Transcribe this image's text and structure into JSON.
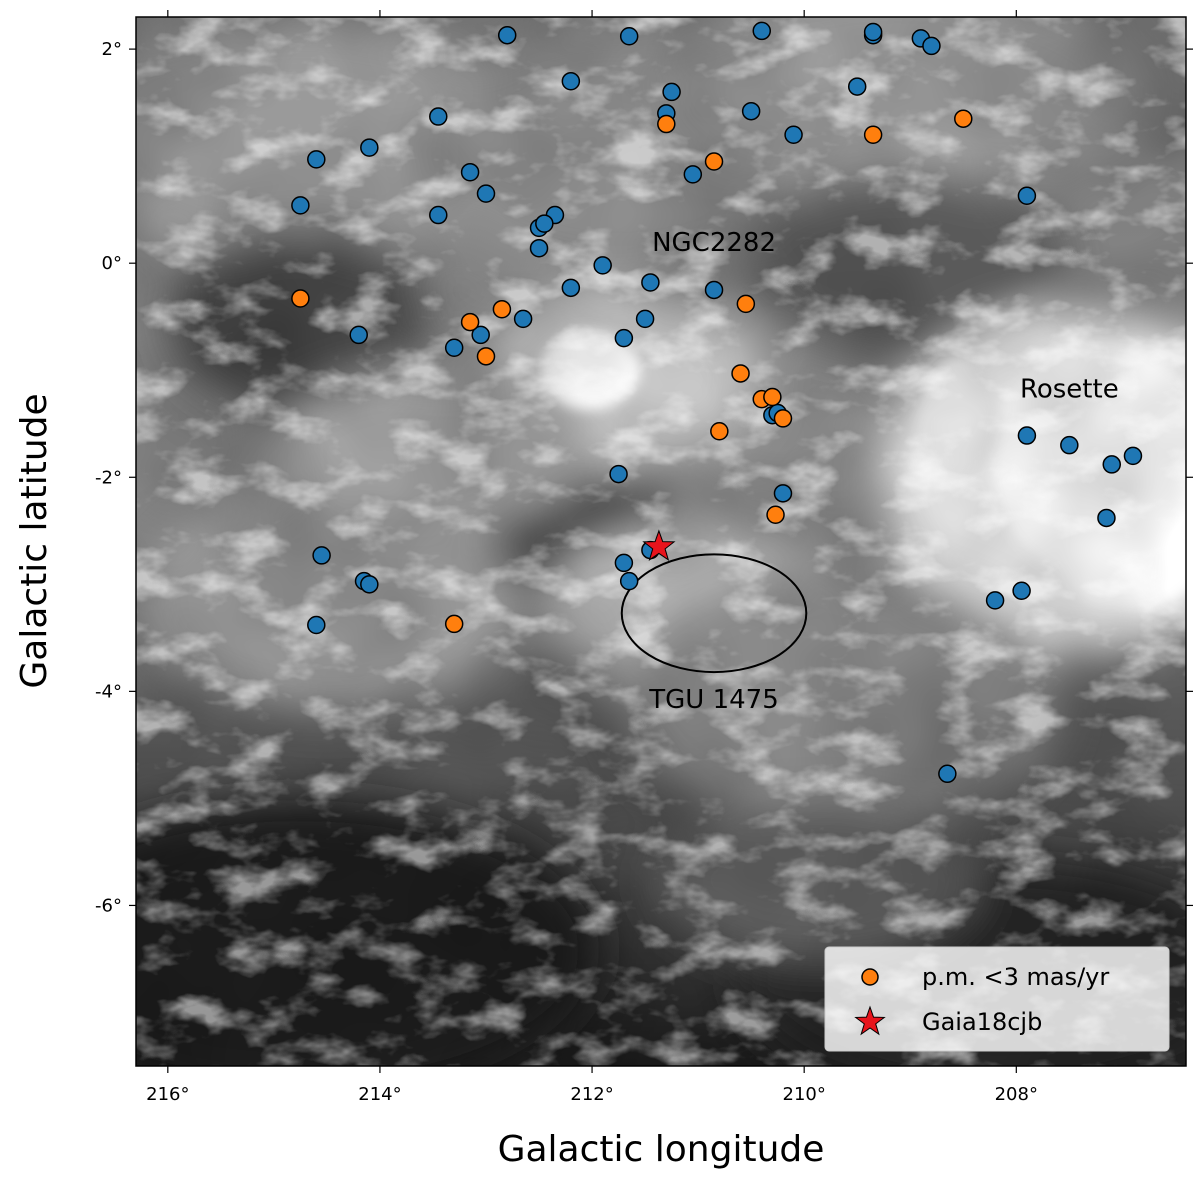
{
  "chart_data": {
    "type": "scatter",
    "background": "grayscale emission image",
    "xlabel": "Galactic longitude",
    "ylabel": "Galactic latitude",
    "xlim": [
      216.3,
      206.4
    ],
    "ylim": [
      -7.5,
      2.3
    ],
    "x_inverted": true,
    "x_ticks": [
      216,
      214,
      212,
      210,
      208
    ],
    "x_tick_labels": [
      "216°",
      "214°",
      "212°",
      "210°",
      "208°"
    ],
    "y_ticks": [
      2,
      0,
      -2,
      -4,
      -6
    ],
    "y_tick_labels": [
      "2°",
      "0°",
      "-2°",
      "-4°",
      "-6°"
    ],
    "grid": false,
    "legend_position": "lower-right",
    "colors": {
      "blue": "#1f77b4",
      "orange": "#ff7f0e",
      "star": "#e8141c"
    },
    "series": [
      {
        "name": "",
        "color": "#1f77b4",
        "x": [
          212.8,
          211.65,
          210.4,
          209.35,
          209.35,
          208.9,
          208.8,
          212.2,
          211.25,
          209.5,
          211.3,
          210.5,
          213.45,
          210.1,
          214.6,
          214.1,
          213.15,
          211.05,
          213.0,
          207.9,
          214.75,
          213.45,
          212.35,
          212.5,
          212.45,
          212.5,
          211.9,
          212.2,
          211.45,
          210.85,
          212.65,
          211.5,
          214.2,
          213.05,
          213.3,
          211.7,
          210.3,
          210.25,
          207.9,
          207.5,
          207.1,
          206.9,
          211.75,
          210.2,
          207.15,
          211.7,
          211.45,
          211.65,
          214.55,
          214.15,
          214.1,
          208.2,
          207.95,
          214.6,
          208.65
        ],
        "y": [
          2.13,
          2.12,
          2.17,
          2.13,
          2.16,
          2.1,
          2.03,
          1.7,
          1.6,
          1.65,
          1.4,
          1.42,
          1.37,
          1.2,
          0.97,
          1.08,
          0.85,
          0.83,
          0.65,
          0.63,
          0.54,
          0.45,
          0.45,
          0.33,
          0.37,
          0.14,
          -0.02,
          -0.23,
          -0.18,
          -0.25,
          -0.52,
          -0.52,
          -0.67,
          -0.67,
          -0.79,
          -0.7,
          -1.42,
          -1.4,
          -1.61,
          -1.7,
          -1.88,
          -1.8,
          -1.97,
          -2.15,
          -2.38,
          -2.8,
          -2.68,
          -2.97,
          -2.73,
          -2.97,
          -3.0,
          -3.15,
          -3.06,
          -3.38,
          -4.77
        ]
      },
      {
        "name": "p.m. <3 mas/yr",
        "color": "#ff7f0e",
        "x": [
          211.3,
          209.35,
          208.5,
          210.85,
          214.75,
          212.85,
          210.55,
          213.15,
          213.0,
          210.6,
          210.4,
          210.3,
          210.2,
          210.8,
          210.27,
          213.3
        ],
        "y": [
          1.3,
          1.2,
          1.35,
          0.95,
          -0.33,
          -0.43,
          -0.38,
          -0.55,
          -0.87,
          -1.03,
          -1.27,
          -1.25,
          -1.45,
          -1.57,
          -2.35,
          -3.37
        ]
      },
      {
        "name": "Gaia18cjb",
        "color": "#e8141c",
        "marker": "star",
        "x": [
          211.37
        ],
        "y": [
          -2.65
        ]
      }
    ],
    "annotations": [
      {
        "text": "NGC2282",
        "x": 210.85,
        "y": 0.2
      },
      {
        "text": "Rosette",
        "x": 207.5,
        "y": -1.17
      },
      {
        "text": "TGU 1475",
        "x": 210.85,
        "y": -4.07
      }
    ],
    "ellipses": [
      {
        "label": "TGU 1475",
        "cx": 210.85,
        "cy": -3.27,
        "rx_deg": 0.87,
        "ry_deg": 0.55
      }
    ]
  }
}
